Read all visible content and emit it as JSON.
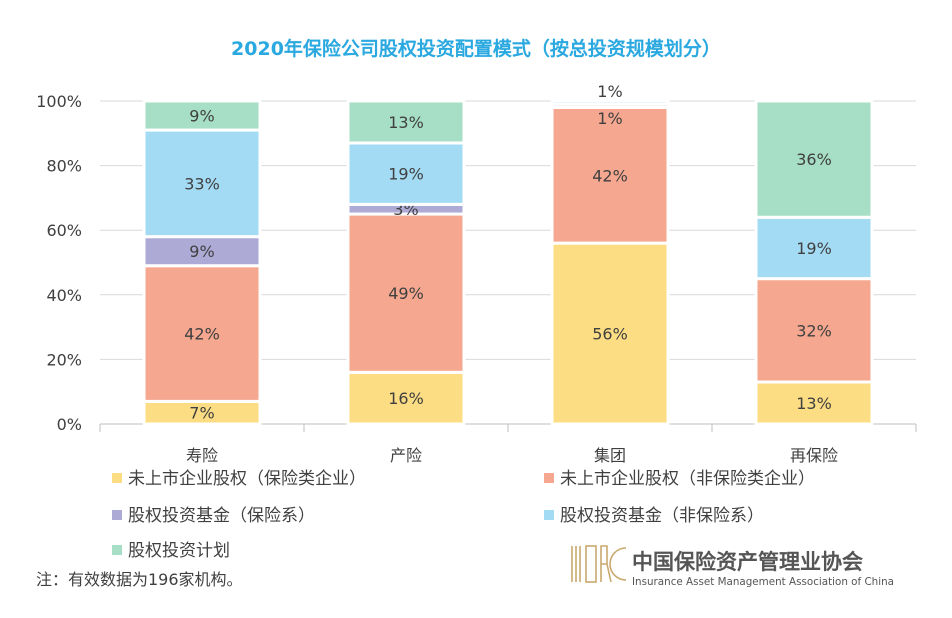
{
  "chart_data": {
    "type": "bar",
    "stacked": true,
    "title": "2020年保险公司股权投资配置模式（按总投资规模划分）",
    "categories": [
      "寿险",
      "产险",
      "集团",
      "再保险"
    ],
    "y_ticks": [
      "0%",
      "20%",
      "40%",
      "60%",
      "80%",
      "100%"
    ],
    "ylim": [
      0,
      100
    ],
    "grid": true,
    "legend_position": "bottom",
    "series": [
      {
        "name": "未上市企业股权（保险类企业）",
        "values": [
          7,
          16,
          56,
          13
        ],
        "labels": [
          "7%",
          "16%",
          "56%",
          "13%"
        ],
        "color": "#fddd84"
      },
      {
        "name": "未上市企业股权（非保险类企业）",
        "values": [
          42,
          49,
          42,
          32
        ],
        "labels": [
          "42%",
          "49%",
          "42%",
          "32%"
        ],
        "color": "#f6a78f"
      },
      {
        "name": "股权投资基金（保险系）",
        "values": [
          9,
          3,
          1,
          0
        ],
        "labels": [
          "9%",
          "3%",
          "1%",
          ""
        ],
        "color": "#aeaad6"
      },
      {
        "name": "股权投资基金（非保险系）",
        "values": [
          33,
          19,
          1,
          19
        ],
        "labels": [
          "33%",
          "19%",
          "1%",
          "19%"
        ],
        "color": "#a4dbf4"
      },
      {
        "name": "股权投资计划",
        "values": [
          9,
          13,
          0,
          36
        ],
        "labels": [
          "9%",
          "13%",
          "",
          "36%"
        ],
        "color": "#a6dfc6"
      }
    ]
  },
  "colors": {
    "title": "#2aa8e0",
    "grid": "#d9d9d9",
    "axis": "#bfbfbf"
  },
  "note": "注：有效数据为196家机构。",
  "logo": {
    "name_cn": "中国保险资产管理业协会",
    "name_en": "Insurance Asset Management Association of China"
  }
}
